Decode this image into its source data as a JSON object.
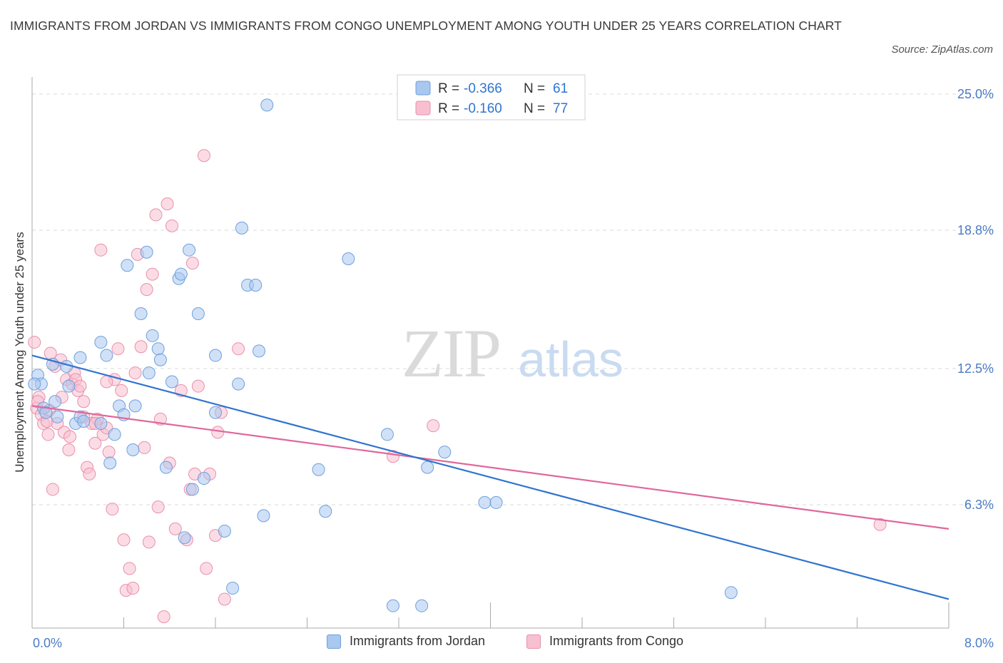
{
  "header": {
    "title": "IMMIGRANTS FROM JORDAN VS IMMIGRANTS FROM CONGO UNEMPLOYMENT AMONG YOUTH UNDER 25 YEARS CORRELATION CHART",
    "source": "Source: ZipAtlas.com"
  },
  "watermark": {
    "zip": "ZIP",
    "atlas": "atlas"
  },
  "colors": {
    "jordan_fill": "#a9c8f0",
    "jordan_stroke": "#6f9fdc",
    "jordan_line": "#2f74d0",
    "congo_fill": "#f7c0d0",
    "congo_stroke": "#e98fac",
    "congo_line": "#e0679a",
    "tick_label": "#4a7cc7",
    "grid": "#d9d9d9"
  },
  "legend_top": {
    "rows": [
      {
        "r_label": "R = ",
        "r_value": "-0.366",
        "n_label": "N = ",
        "n_value": "61"
      },
      {
        "r_label": "R = ",
        "r_value": "-0.160",
        "n_label": "N = ",
        "n_value": "77"
      }
    ]
  },
  "legend_bottom": {
    "items": [
      "Immigrants from Jordan",
      "Immigrants from Congo"
    ]
  },
  "chart_data": {
    "type": "scatter",
    "title": "IMMIGRANTS FROM JORDAN VS IMMIGRANTS FROM CONGO UNEMPLOYMENT AMONG YOUTH UNDER 25 YEARS CORRELATION CHART",
    "xlabel": "",
    "ylabel": "Unemployment Among Youth under 25 years",
    "xlim": [
      0,
      8
    ],
    "ylim": [
      0,
      25.5
    ],
    "x_tick_labels": [
      "0.0%",
      "8.0%"
    ],
    "y_ticks": [
      6.3,
      12.5,
      18.8,
      25.0
    ],
    "y_tick_labels": [
      "6.3%",
      "12.5%",
      "18.8%",
      "25.0%"
    ],
    "grid": true,
    "legend_placement": "bottom-center",
    "series": [
      {
        "name": "Immigrants from Jordan",
        "r": -0.366,
        "n": 61,
        "trend": {
          "x": [
            0,
            8
          ],
          "y": [
            13.1,
            2.0
          ]
        },
        "points": [
          [
            0.05,
            12.2
          ],
          [
            0.08,
            11.8
          ],
          [
            0.1,
            10.7
          ],
          [
            0.12,
            10.5
          ],
          [
            0.18,
            12.7
          ],
          [
            0.2,
            11.0
          ],
          [
            0.22,
            10.3
          ],
          [
            0.32,
            11.7
          ],
          [
            0.38,
            10.0
          ],
          [
            0.42,
            10.3
          ],
          [
            0.42,
            13.0
          ],
          [
            0.45,
            10.1
          ],
          [
            0.6,
            13.7
          ],
          [
            0.6,
            10.0
          ],
          [
            0.65,
            13.1
          ],
          [
            0.68,
            8.2
          ],
          [
            0.72,
            9.5
          ],
          [
            0.76,
            10.8
          ],
          [
            0.8,
            10.4
          ],
          [
            0.83,
            17.2
          ],
          [
            0.88,
            8.8
          ],
          [
            0.9,
            10.8
          ],
          [
            0.95,
            15.0
          ],
          [
            1.0,
            17.8
          ],
          [
            1.02,
            12.3
          ],
          [
            1.05,
            14.0
          ],
          [
            1.1,
            13.4
          ],
          [
            1.12,
            12.9
          ],
          [
            1.17,
            8.0
          ],
          [
            1.22,
            11.9
          ],
          [
            1.28,
            16.6
          ],
          [
            1.3,
            16.8
          ],
          [
            1.33,
            4.8
          ],
          [
            1.37,
            17.9
          ],
          [
            1.4,
            7.0
          ],
          [
            1.45,
            15.0
          ],
          [
            1.5,
            7.5
          ],
          [
            1.6,
            10.5
          ],
          [
            1.6,
            13.1
          ],
          [
            1.68,
            5.1
          ],
          [
            1.75,
            2.5
          ],
          [
            1.8,
            11.8
          ],
          [
            1.83,
            18.9
          ],
          [
            1.88,
            16.3
          ],
          [
            1.95,
            16.3
          ],
          [
            1.98,
            13.3
          ],
          [
            2.02,
            5.8
          ],
          [
            2.05,
            24.5
          ],
          [
            2.5,
            7.9
          ],
          [
            2.56,
            6.0
          ],
          [
            2.76,
            17.5
          ],
          [
            3.1,
            9.5
          ],
          [
            3.15,
            1.7
          ],
          [
            3.4,
            1.7
          ],
          [
            3.45,
            8.0
          ],
          [
            3.6,
            8.7
          ],
          [
            3.95,
            6.4
          ],
          [
            4.05,
            6.4
          ],
          [
            6.1,
            2.3
          ],
          [
            0.02,
            11.8
          ],
          [
            0.3,
            12.6
          ]
        ]
      },
      {
        "name": "Immigrants from Congo",
        "r": -0.16,
        "n": 77,
        "trend": {
          "x": [
            0,
            8
          ],
          "y": [
            10.8,
            5.2
          ]
        },
        "points": [
          [
            0.02,
            13.7
          ],
          [
            0.04,
            10.7
          ],
          [
            0.06,
            11.2
          ],
          [
            0.08,
            10.4
          ],
          [
            0.1,
            10.0
          ],
          [
            0.13,
            10.1
          ],
          [
            0.14,
            9.5
          ],
          [
            0.16,
            13.2
          ],
          [
            0.18,
            7.0
          ],
          [
            0.2,
            12.6
          ],
          [
            0.22,
            10.0
          ],
          [
            0.26,
            11.2
          ],
          [
            0.28,
            9.6
          ],
          [
            0.3,
            12.0
          ],
          [
            0.32,
            8.8
          ],
          [
            0.33,
            9.4
          ],
          [
            0.35,
            11.8
          ],
          [
            0.37,
            12.3
          ],
          [
            0.38,
            12.0
          ],
          [
            0.4,
            11.5
          ],
          [
            0.42,
            11.7
          ],
          [
            0.45,
            10.3
          ],
          [
            0.48,
            8.0
          ],
          [
            0.5,
            7.7
          ],
          [
            0.52,
            10.0
          ],
          [
            0.55,
            9.1
          ],
          [
            0.57,
            10.2
          ],
          [
            0.6,
            17.9
          ],
          [
            0.62,
            9.5
          ],
          [
            0.65,
            9.8
          ],
          [
            0.67,
            8.7
          ],
          [
            0.7,
            6.1
          ],
          [
            0.72,
            12.0
          ],
          [
            0.75,
            13.4
          ],
          [
            0.78,
            11.5
          ],
          [
            0.8,
            4.7
          ],
          [
            0.82,
            2.4
          ],
          [
            0.85,
            3.4
          ],
          [
            0.88,
            2.5
          ],
          [
            0.9,
            12.3
          ],
          [
            0.92,
            17.7
          ],
          [
            0.95,
            13.5
          ],
          [
            0.98,
            8.9
          ],
          [
            1.0,
            16.1
          ],
          [
            1.02,
            4.6
          ],
          [
            1.05,
            16.8
          ],
          [
            1.08,
            19.5
          ],
          [
            1.1,
            6.2
          ],
          [
            1.12,
            10.2
          ],
          [
            1.15,
            1.2
          ],
          [
            1.18,
            20.0
          ],
          [
            1.2,
            8.2
          ],
          [
            1.22,
            19.0
          ],
          [
            1.25,
            5.2
          ],
          [
            1.3,
            11.5
          ],
          [
            1.35,
            4.7
          ],
          [
            1.38,
            7.0
          ],
          [
            1.4,
            17.3
          ],
          [
            1.42,
            7.7
          ],
          [
            1.45,
            11.7
          ],
          [
            1.5,
            22.2
          ],
          [
            1.52,
            3.4
          ],
          [
            1.55,
            7.7
          ],
          [
            1.6,
            4.9
          ],
          [
            1.62,
            9.6
          ],
          [
            1.65,
            10.5
          ],
          [
            1.68,
            2.0
          ],
          [
            1.8,
            13.4
          ],
          [
            3.15,
            8.5
          ],
          [
            3.5,
            9.9
          ],
          [
            7.4,
            5.4
          ],
          [
            0.05,
            11.0
          ],
          [
            0.15,
            10.6
          ],
          [
            0.25,
            12.9
          ],
          [
            0.45,
            11.0
          ],
          [
            0.55,
            10.0
          ],
          [
            0.65,
            11.9
          ]
        ]
      }
    ]
  }
}
